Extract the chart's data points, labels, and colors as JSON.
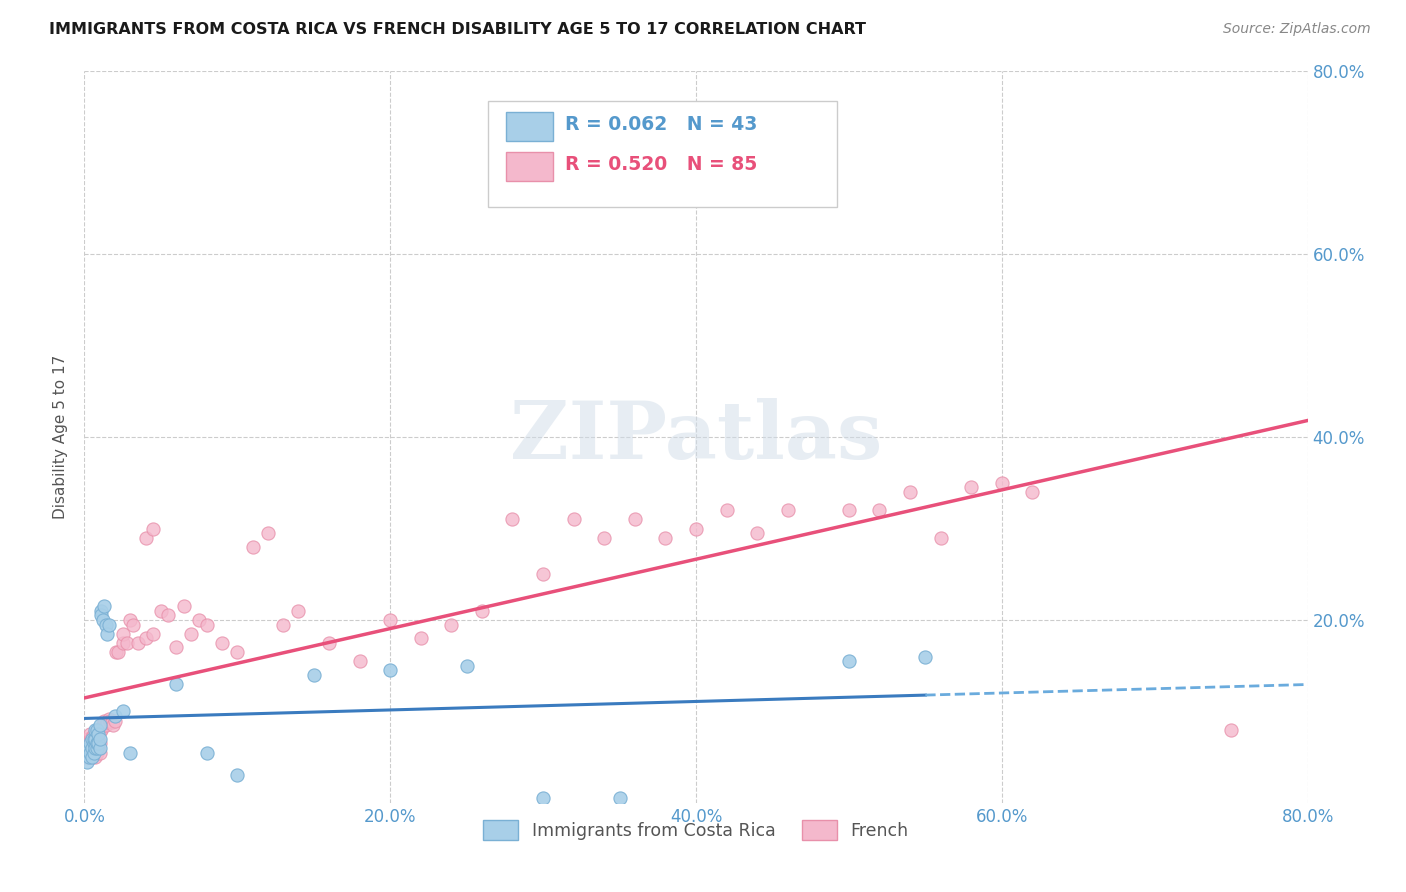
{
  "title": "IMMIGRANTS FROM COSTA RICA VS FRENCH DISABILITY AGE 5 TO 17 CORRELATION CHART",
  "source": "Source: ZipAtlas.com",
  "ylabel": "Disability Age 5 to 17",
  "xlim": [
    0.0,
    0.8
  ],
  "ylim": [
    0.0,
    0.8
  ],
  "xticks": [
    0.0,
    0.2,
    0.4,
    0.6,
    0.8
  ],
  "yticks": [
    0.2,
    0.4,
    0.6,
    0.8
  ],
  "xticklabels": [
    "0.0%",
    "20.0%",
    "40.0%",
    "60.0%",
    "80.0%"
  ],
  "yticklabels": [
    "20.0%",
    "40.0%",
    "60.0%",
    "80.0%"
  ],
  "background_color": "#ffffff",
  "blue_scatter_color": "#a8cfe8",
  "blue_scatter_edge": "#7ab0d4",
  "pink_scatter_color": "#f4b8cc",
  "pink_scatter_edge": "#e890aa",
  "blue_line_solid_color": "#3a7bbf",
  "blue_line_dash_color": "#6aabdd",
  "pink_line_color": "#e8507a",
  "tick_color": "#5599cc",
  "ylabel_color": "#555555",
  "cr_x": [
    0.001,
    0.002,
    0.003,
    0.003,
    0.004,
    0.004,
    0.005,
    0.005,
    0.005,
    0.006,
    0.006,
    0.006,
    0.007,
    0.007,
    0.007,
    0.008,
    0.008,
    0.008,
    0.009,
    0.009,
    0.01,
    0.01,
    0.01,
    0.011,
    0.011,
    0.012,
    0.013,
    0.014,
    0.015,
    0.016,
    0.02,
    0.025,
    0.03,
    0.06,
    0.08,
    0.1,
    0.15,
    0.2,
    0.25,
    0.3,
    0.35,
    0.5,
    0.55
  ],
  "cr_y": [
    0.055,
    0.045,
    0.05,
    0.06,
    0.055,
    0.065,
    0.05,
    0.06,
    0.07,
    0.055,
    0.065,
    0.07,
    0.06,
    0.07,
    0.08,
    0.06,
    0.065,
    0.08,
    0.065,
    0.075,
    0.06,
    0.07,
    0.085,
    0.21,
    0.205,
    0.2,
    0.215,
    0.195,
    0.185,
    0.195,
    0.095,
    0.1,
    0.055,
    0.13,
    0.055,
    0.03,
    0.14,
    0.145,
    0.15,
    0.005,
    0.005,
    0.155,
    0.16
  ],
  "fr_x": [
    0.001,
    0.001,
    0.002,
    0.002,
    0.003,
    0.003,
    0.004,
    0.004,
    0.004,
    0.005,
    0.005,
    0.005,
    0.006,
    0.006,
    0.006,
    0.007,
    0.007,
    0.007,
    0.008,
    0.008,
    0.008,
    0.009,
    0.009,
    0.01,
    0.01,
    0.01,
    0.011,
    0.012,
    0.013,
    0.014,
    0.015,
    0.016,
    0.017,
    0.018,
    0.019,
    0.02,
    0.021,
    0.022,
    0.025,
    0.025,
    0.028,
    0.03,
    0.032,
    0.035,
    0.04,
    0.04,
    0.045,
    0.045,
    0.05,
    0.055,
    0.06,
    0.065,
    0.07,
    0.075,
    0.08,
    0.09,
    0.1,
    0.11,
    0.12,
    0.13,
    0.14,
    0.16,
    0.18,
    0.2,
    0.22,
    0.24,
    0.26,
    0.28,
    0.3,
    0.32,
    0.34,
    0.36,
    0.38,
    0.4,
    0.42,
    0.44,
    0.46,
    0.5,
    0.52,
    0.54,
    0.56,
    0.58,
    0.6,
    0.62,
    0.75
  ],
  "fr_y": [
    0.05,
    0.065,
    0.055,
    0.07,
    0.05,
    0.065,
    0.055,
    0.068,
    0.075,
    0.05,
    0.06,
    0.072,
    0.055,
    0.065,
    0.075,
    0.05,
    0.062,
    0.072,
    0.055,
    0.065,
    0.078,
    0.06,
    0.07,
    0.055,
    0.065,
    0.078,
    0.08,
    0.085,
    0.09,
    0.085,
    0.088,
    0.092,
    0.09,
    0.088,
    0.085,
    0.09,
    0.165,
    0.165,
    0.175,
    0.185,
    0.175,
    0.2,
    0.195,
    0.175,
    0.18,
    0.29,
    0.185,
    0.3,
    0.21,
    0.205,
    0.17,
    0.215,
    0.185,
    0.2,
    0.195,
    0.175,
    0.165,
    0.28,
    0.295,
    0.195,
    0.21,
    0.175,
    0.155,
    0.2,
    0.18,
    0.195,
    0.21,
    0.31,
    0.25,
    0.31,
    0.29,
    0.31,
    0.29,
    0.3,
    0.32,
    0.295,
    0.32,
    0.32,
    0.32,
    0.34,
    0.29,
    0.345,
    0.35,
    0.34,
    0.08
  ]
}
